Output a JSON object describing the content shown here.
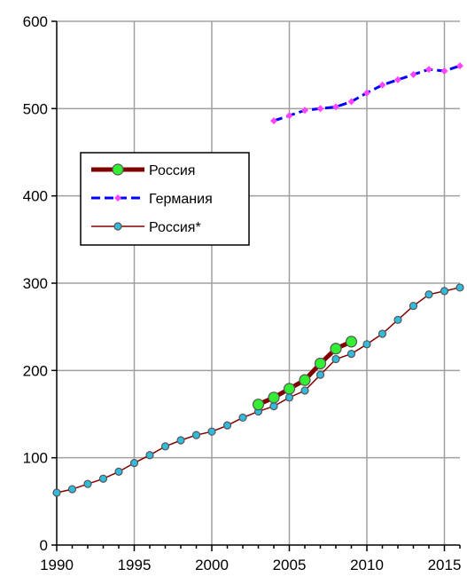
{
  "chart_data": {
    "type": "line",
    "title": "",
    "xlabel": "",
    "ylabel": "",
    "xlim": [
      1990,
      2016
    ],
    "ylim": [
      0,
      600
    ],
    "x_ticks": [
      "1990",
      "1995",
      "2000",
      "2005",
      "2010",
      "2015"
    ],
    "y_ticks": [
      "0",
      "100",
      "200",
      "300",
      "400",
      "500",
      "600"
    ],
    "grid": true,
    "legend_position": "center-left",
    "series": [
      {
        "name": "Россия",
        "color": "#800000",
        "marker_color": "#33ee33",
        "style": "thick",
        "x": [
          2003,
          2004,
          2005,
          2006,
          2007,
          2008,
          2009
        ],
        "y": [
          161,
          169,
          179,
          189,
          208,
          225,
          233
        ]
      },
      {
        "name": "Германия",
        "color": "#0000ff",
        "marker_color": "#ff44ff",
        "style": "dashed",
        "x": [
          2004,
          2005,
          2006,
          2007,
          2008,
          2009,
          2010,
          2011,
          2012,
          2013,
          2014,
          2015,
          2016
        ],
        "y": [
          486,
          492,
          498,
          500,
          502,
          508,
          518,
          527,
          533,
          539,
          545,
          543,
          549
        ]
      },
      {
        "name": "Россия*",
        "color": "#800000",
        "marker_color": "#33bbdd",
        "style": "thin",
        "x": [
          1990,
          1991,
          1992,
          1993,
          1994,
          1995,
          1996,
          1997,
          1998,
          1999,
          2000,
          2001,
          2002,
          2003,
          2004,
          2005,
          2006,
          2007,
          2008,
          2009,
          2010,
          2011,
          2012,
          2013,
          2014,
          2015,
          2016
        ],
        "y": [
          60,
          64,
          70,
          76,
          84,
          94,
          103,
          113,
          120,
          126,
          130,
          137,
          146,
          153,
          159,
          169,
          177,
          195,
          213,
          219,
          230,
          242,
          258,
          274,
          287,
          291,
          295
        ]
      }
    ]
  }
}
